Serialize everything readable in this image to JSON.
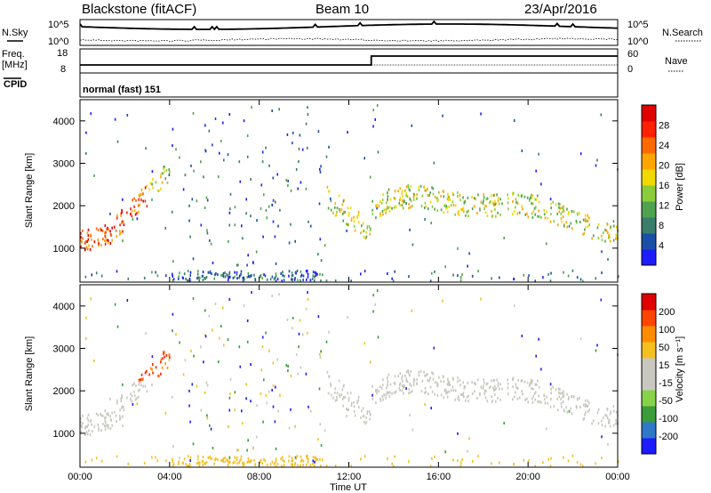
{
  "header": {
    "radar": "Blackstone (fitACF)",
    "beam": "Beam 10",
    "date": "23/Apr/2016"
  },
  "status_panels": {
    "nsky_label": "N.Sky",
    "nsearch_label": "N.Search",
    "noise_ticks": [
      "10^5",
      "10^0"
    ],
    "freq_label": "Freq.",
    "freq_unit": "[MHz]",
    "freq_ticks": [
      "18",
      "8"
    ],
    "nave_label": "Nave",
    "nave_ticks": [
      "60",
      "0"
    ],
    "cpid_label": "CPID",
    "cpid_value": "normal (fast) 151"
  },
  "chart_data": [
    {
      "type": "heatmap",
      "panel": "power",
      "ylabel": "Slant Range [km]",
      "colorbar_label": "Power [dB]",
      "colorbar_ticks": [
        "28",
        "24",
        "20",
        "16",
        "12",
        "8",
        "4"
      ],
      "colorbar_colors": [
        "#1c1cff",
        "#1a4fa8",
        "#3a7d6a",
        "#4fa34f",
        "#8ccc3a",
        "#f0d800",
        "#ffa500",
        "#ff6a00",
        "#ff2200",
        "#e00000"
      ],
      "ylim": [
        200,
        4500
      ],
      "yticks": [
        1000,
        2000,
        3000,
        4000
      ],
      "xlim": [
        0,
        24
      ]
    },
    {
      "type": "heatmap",
      "panel": "velocity",
      "ylabel": "Slant Range [km]",
      "colorbar_label": "Velocity [m s⁻¹]",
      "colorbar_ticks": [
        "200",
        "100",
        "50",
        "15",
        "-15",
        "-50",
        "-100",
        "-200"
      ],
      "colorbar_colors": [
        "#1c1cff",
        "#2f78c8",
        "#3a9c3a",
        "#86d24a",
        "#c8c8c0",
        "#c8c8c0",
        "#f4c020",
        "#ff8c00",
        "#ff4500",
        "#e00000"
      ],
      "ylim": [
        200,
        4500
      ],
      "yticks": [
        1000,
        2000,
        3000,
        4000
      ],
      "xlim": [
        0,
        24
      ]
    }
  ],
  "x_axis": {
    "ticks": [
      "00:00",
      "04:00",
      "08:00",
      "12:00",
      "16:00",
      "20:00",
      "00:00"
    ],
    "label": "Time UT"
  }
}
